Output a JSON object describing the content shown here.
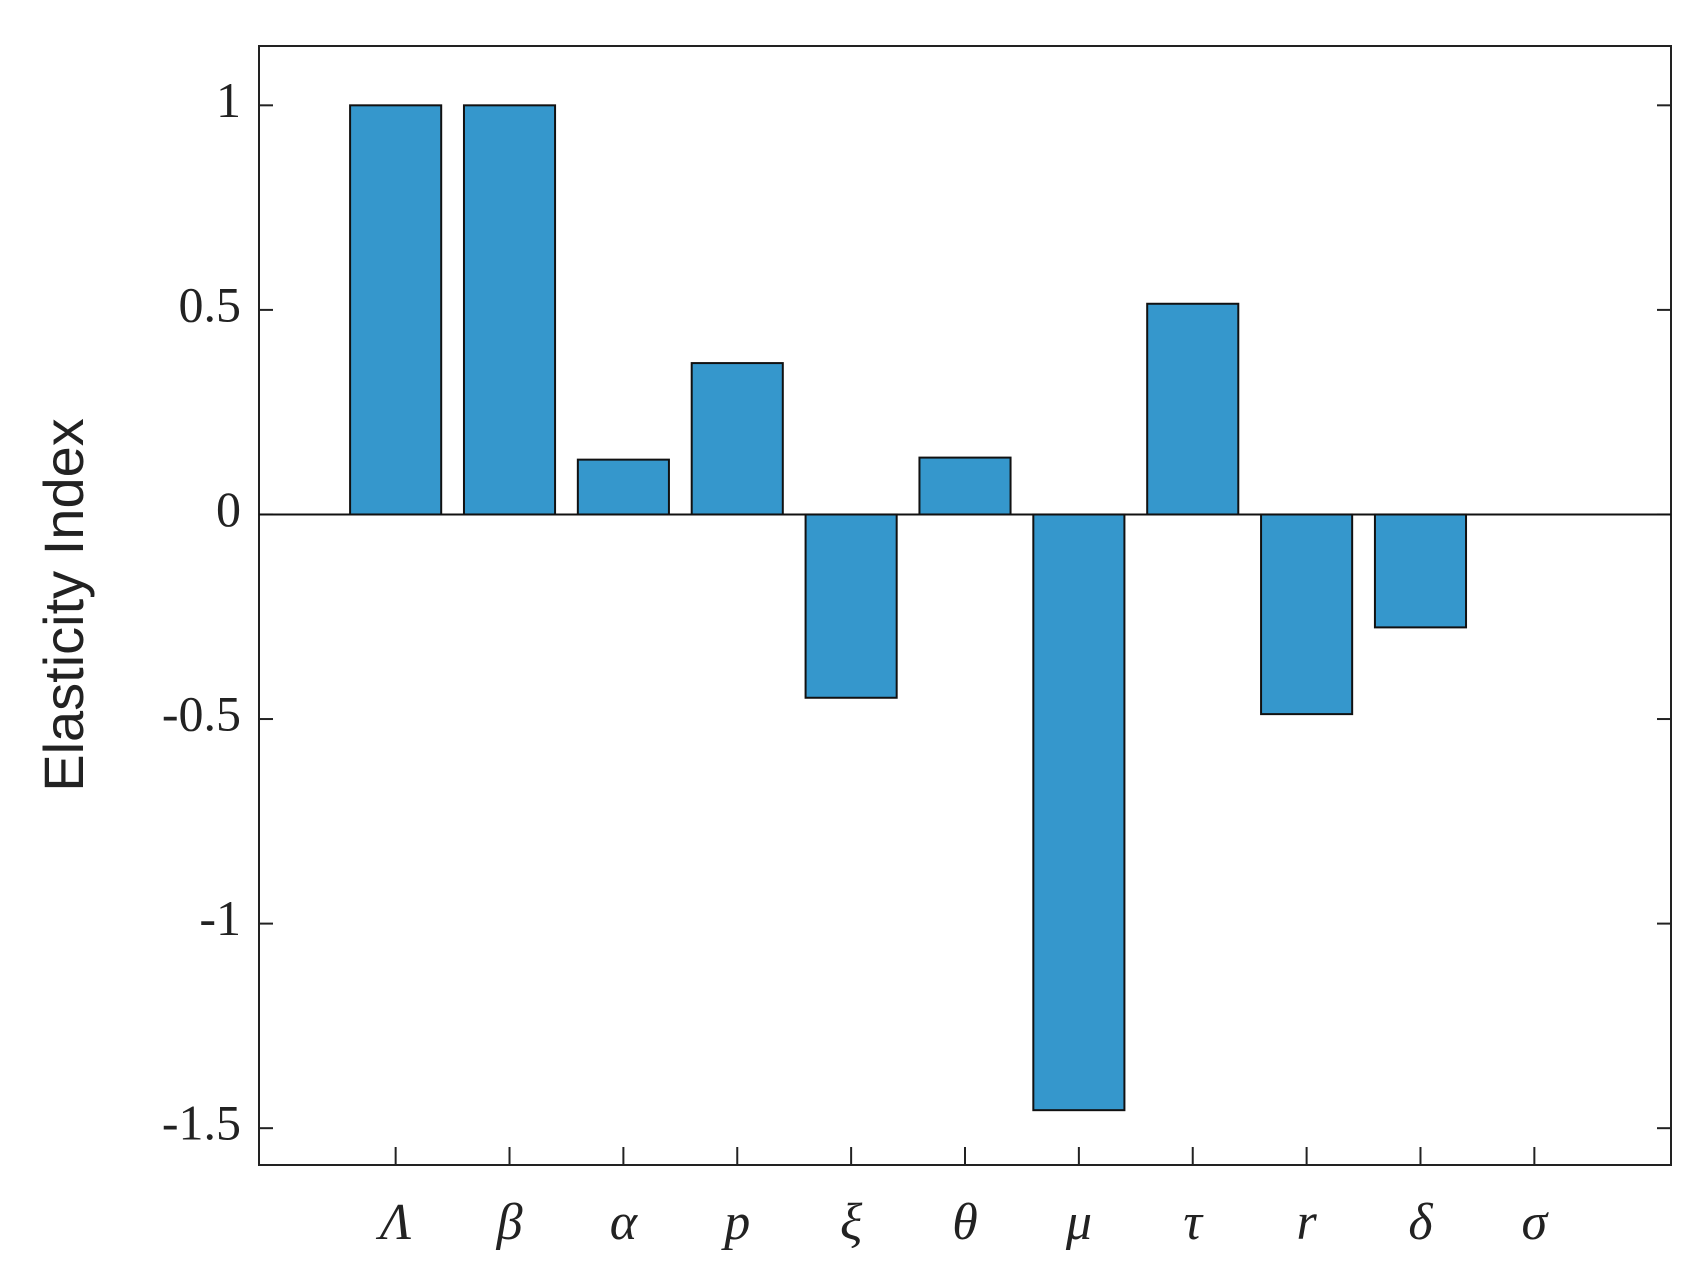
{
  "chart_data": {
    "type": "bar",
    "y_label": "Elasticity Index",
    "categories": [
      "Λ",
      "β",
      "α",
      "p",
      "ξ",
      "θ",
      "μ",
      "τ",
      "r",
      "δ",
      "σ"
    ],
    "values": [
      1,
      1,
      0.134,
      0.37,
      -0.448,
      0.139,
      -1.456,
      0.515,
      -0.488,
      -0.276,
      0
    ],
    "color": "#3597cc",
    "ylim": [
      -1.59,
      1.145
    ],
    "yticks": [
      -1.5,
      -1,
      -0.5,
      0,
      0.5,
      1
    ],
    "grid": false
  }
}
